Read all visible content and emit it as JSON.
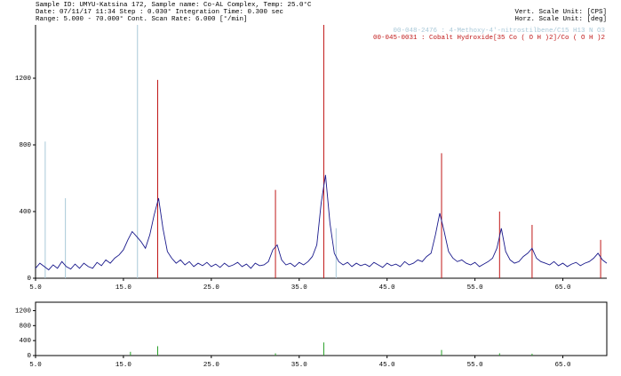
{
  "header": {
    "left": [
      "Sample ID: UMYU-Katsina 172,    Sample name: Co-AL Complex,   Temp: 25.0°C",
      "Date: 07/11/17 11:34   Step : 0.030°  Integration Time: 0.300 sec",
      "Range: 5.000 - 70.000° Cont. Scan Rate: 6.000 [°/min]"
    ],
    "right": [
      "Vert. Scale Unit: [CPS]",
      "Horz. Scale Unit: [deg]"
    ]
  },
  "chart_data": [
    {
      "type": "line",
      "x": [
        5,
        5.5,
        6,
        6.5,
        7,
        7.5,
        8,
        8.5,
        9,
        9.5,
        10,
        10.5,
        11,
        11.5,
        12,
        12.5,
        13,
        13.5,
        14,
        14.5,
        15,
        15.5,
        16,
        16.5,
        17,
        17.5,
        18,
        18.5,
        19,
        19.5,
        20,
        20.5,
        21,
        21.5,
        22,
        22.5,
        23,
        23.5,
        24,
        24.5,
        25,
        25.5,
        26,
        26.5,
        27,
        27.5,
        28,
        28.5,
        29,
        29.5,
        30,
        30.5,
        31,
        31.5,
        32,
        32.5,
        33,
        33.5,
        34,
        34.5,
        35,
        35.5,
        36,
        36.5,
        37,
        37.5,
        38,
        38.5,
        39,
        39.5,
        40,
        40.5,
        41,
        41.5,
        42,
        42.5,
        43,
        43.5,
        44,
        44.5,
        45,
        45.5,
        46,
        46.5,
        47,
        47.5,
        48,
        48.5,
        49,
        49.5,
        50,
        50.5,
        51,
        51.5,
        52,
        52.5,
        53,
        53.5,
        54,
        54.5,
        55,
        55.5,
        56,
        56.5,
        57,
        57.5,
        58,
        58.5,
        59,
        59.5,
        60,
        60.5,
        61,
        61.5,
        62,
        62.5,
        63,
        63.5,
        64,
        64.5,
        65,
        65.5,
        66,
        66.5,
        67,
        67.5,
        68,
        68.5,
        69,
        69.5,
        70
      ],
      "series": [
        {
          "color": "#1a1a8c",
          "values": [
            60,
            90,
            70,
            50,
            80,
            60,
            100,
            70,
            55,
            85,
            60,
            90,
            70,
            60,
            95,
            75,
            110,
            90,
            120,
            140,
            170,
            230,
            280,
            250,
            220,
            180,
            260,
            380,
            480,
            300,
            160,
            120,
            90,
            110,
            80,
            100,
            70,
            90,
            75,
            95,
            70,
            85,
            65,
            90,
            70,
            80,
            95,
            70,
            85,
            60,
            90,
            75,
            80,
            100,
            170,
            200,
            110,
            80,
            90,
            70,
            95,
            80,
            100,
            130,
            200,
            450,
            620,
            330,
            150,
            100,
            80,
            95,
            70,
            90,
            75,
            85,
            70,
            95,
            80,
            65,
            90,
            75,
            85,
            70,
            100,
            80,
            90,
            110,
            100,
            130,
            150,
            260,
            390,
            280,
            160,
            120,
            100,
            110,
            90,
            80,
            95,
            70,
            85,
            100,
            120,
            180,
            300,
            160,
            110,
            90,
            100,
            130,
            150,
            180,
            120,
            100,
            90,
            80,
            100,
            75,
            90,
            70,
            85,
            95,
            75,
            90,
            100,
            120,
            150,
            110,
            90
          ]
        }
      ],
      "references": [
        {
          "name": "00-048-2476 : 4-Methoxy-4'-nitrostilbene/C15 H13 N O3",
          "color": "#a8c8d8",
          "positions": [
            6.1,
            8.4,
            16.6,
            39.2
          ],
          "values": [
            820,
            480,
            1520,
            300
          ]
        },
        {
          "name": "00-045-0031 : Cobalt Hydroxide[35 Co ( O H )2]/Co ( O H )2",
          "color": "#c01818",
          "positions": [
            18.9,
            32.3,
            37.8,
            51.2,
            57.8,
            61.5,
            69.3
          ],
          "values": [
            1190,
            530,
            1520,
            750,
            400,
            320,
            230
          ]
        }
      ],
      "xlim": [
        5,
        70
      ],
      "ylim": [
        0,
        1520
      ],
      "xticks": [
        {
          "value": 5,
          "label": "5.0"
        },
        {
          "value": 15,
          "label": "15.0"
        },
        {
          "value": 25,
          "label": "25.0"
        },
        {
          "value": 35,
          "label": "35.0"
        },
        {
          "value": 45,
          "label": "45.0"
        },
        {
          "value": 55,
          "label": "55.0"
        },
        {
          "value": 65,
          "label": "65.0"
        }
      ],
      "yticks": [
        0,
        400,
        800,
        1200
      ]
    },
    {
      "type": "stick",
      "x": [
        15.8,
        18.9,
        32.3,
        37.8,
        51.2,
        57.8,
        61.5
      ],
      "values": [
        100,
        250,
        60,
        350,
        150,
        60,
        50
      ],
      "color": "#2aa02a",
      "xlim": [
        5,
        70
      ],
      "ylim": [
        0,
        1425
      ],
      "xticks": [
        {
          "value": 5,
          "label": "5.0"
        },
        {
          "value": 15,
          "label": "15.0"
        },
        {
          "value": 25,
          "label": "25.0"
        },
        {
          "value": 35,
          "label": "35.0"
        },
        {
          "value": 45,
          "label": "45.0"
        },
        {
          "value": 55,
          "label": "55.0"
        },
        {
          "value": 65,
          "label": "65.0"
        }
      ],
      "yticks": [
        0,
        400,
        800,
        1200
      ]
    }
  ]
}
